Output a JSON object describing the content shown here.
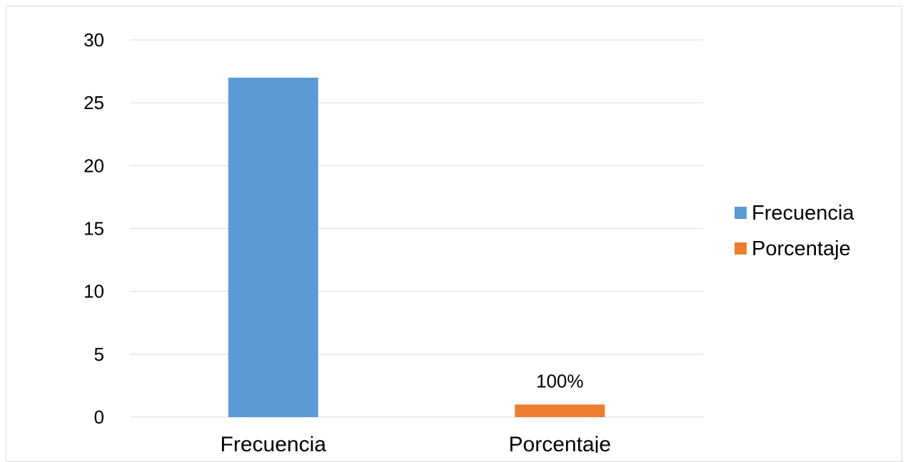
{
  "chart_data": {
    "type": "bar",
    "title": "",
    "xlabel": "",
    "ylabel": "",
    "categories": [
      "Frecuencia",
      "Porcentaje"
    ],
    "series": [
      {
        "name": "Frecuencia",
        "color": "#5b9bd5",
        "values": [
          27,
          null
        ]
      },
      {
        "name": "Porcentaje",
        "color": "#ed7d31",
        "values": [
          null,
          1
        ]
      }
    ],
    "data_labels": [
      {
        "series": "Porcentaje",
        "category": "Porcentaje",
        "text": "100%"
      }
    ],
    "ylim": [
      0,
      30
    ],
    "yticks": [
      0,
      5,
      10,
      15,
      20,
      25,
      30
    ],
    "grid": true,
    "legend_position": "right"
  }
}
